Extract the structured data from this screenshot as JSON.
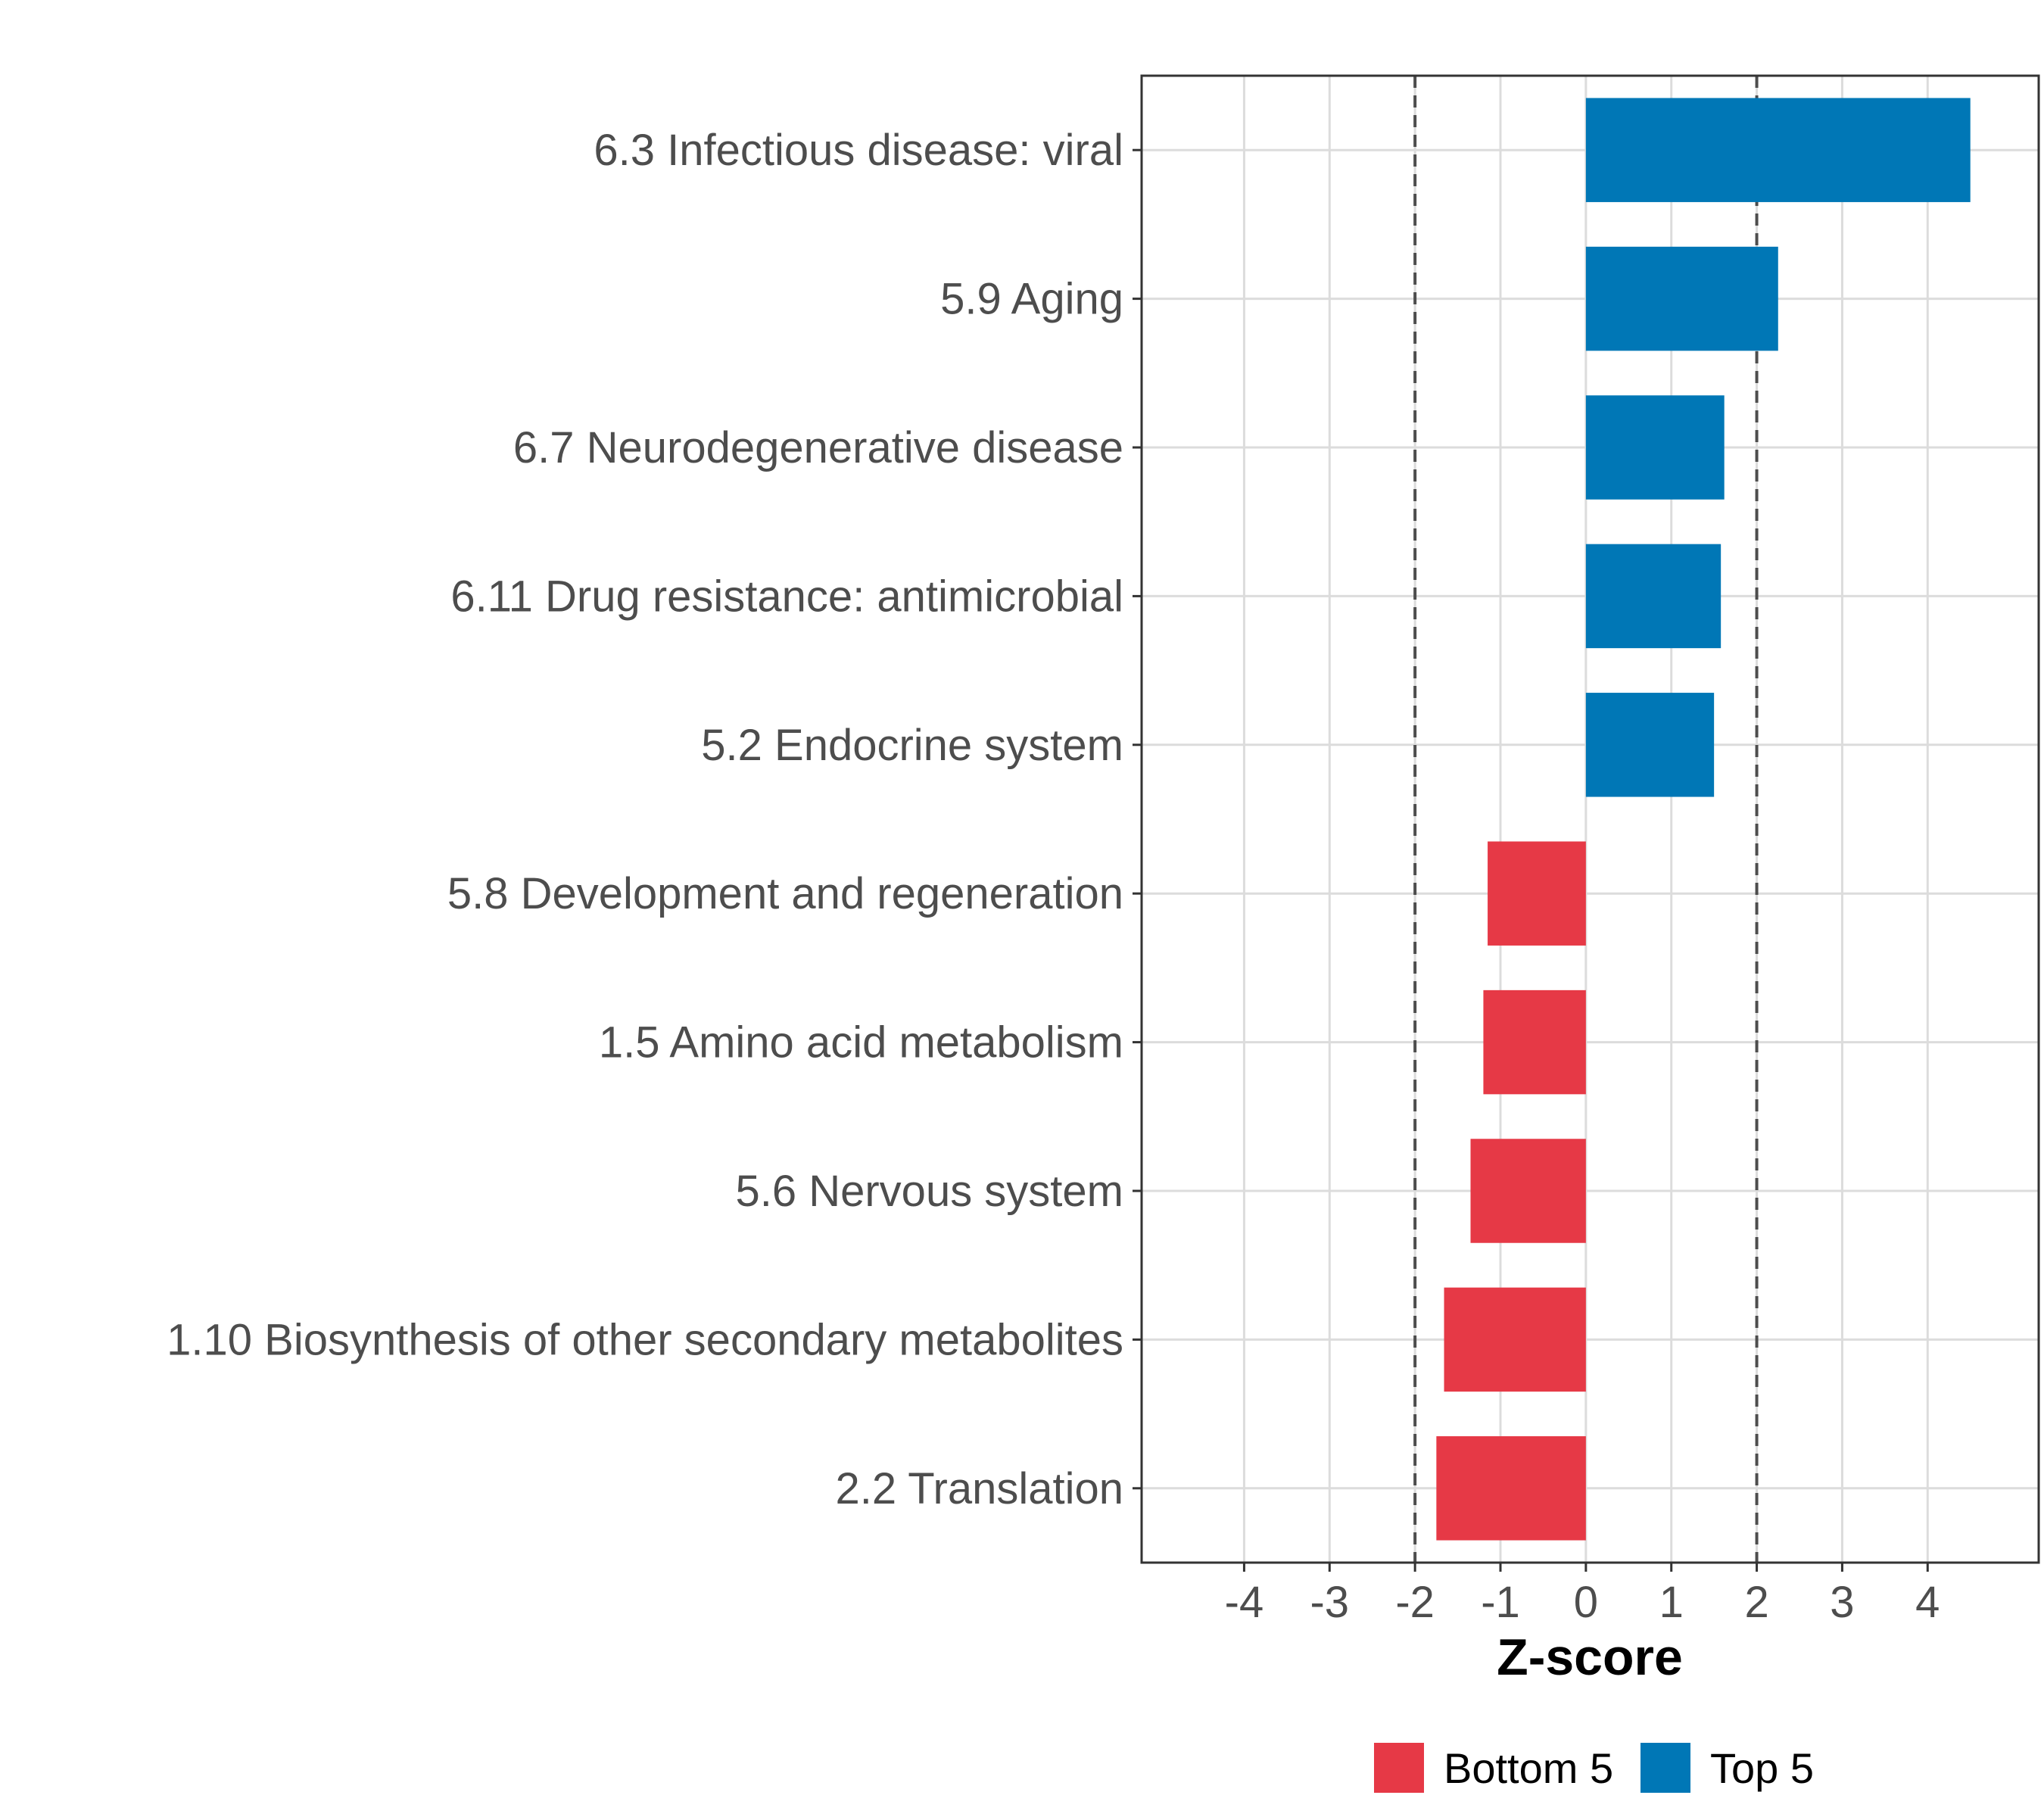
{
  "chart_data": {
    "type": "bar",
    "orientation": "horizontal",
    "title": "",
    "xlabel": "Z-score",
    "ylabel": "",
    "xlim": [
      -5.2,
      5.3
    ],
    "x_ticks": [
      -4,
      -3,
      -2,
      -1,
      0,
      1,
      2,
      3,
      4
    ],
    "x_tick_labels": [
      "-4",
      "-3",
      "-2",
      "-1",
      "0",
      "1",
      "2",
      "3",
      "4"
    ],
    "reference_lines": [
      -2,
      2
    ],
    "grid": true,
    "legend_position": "bottom",
    "categories": [
      "6.3 Infectious disease: viral",
      "5.9 Aging",
      "6.7 Neurodegenerative disease",
      "6.11 Drug resistance: antimicrobial",
      "5.2 Endocrine system",
      "5.8 Development and regeneration",
      "1.5 Amino acid metabolism",
      "5.6 Nervous system",
      "1.10 Biosynthesis of other secondary metabolites",
      "2.2 Translation"
    ],
    "values": [
      4.5,
      2.25,
      1.62,
      1.58,
      1.5,
      -1.15,
      -1.2,
      -1.35,
      -1.66,
      -1.75
    ],
    "groups": [
      "Top 5",
      "Top 5",
      "Top 5",
      "Top 5",
      "Top 5",
      "Bottom 5",
      "Bottom 5",
      "Bottom 5",
      "Bottom 5",
      "Bottom 5"
    ],
    "legend": [
      {
        "name": "Bottom 5",
        "color": "#E63946"
      },
      {
        "name": "Top 5",
        "color": "#0077B6"
      }
    ],
    "colors": {
      "Top 5": "#0077B6",
      "Bottom 5": "#E63946"
    }
  }
}
